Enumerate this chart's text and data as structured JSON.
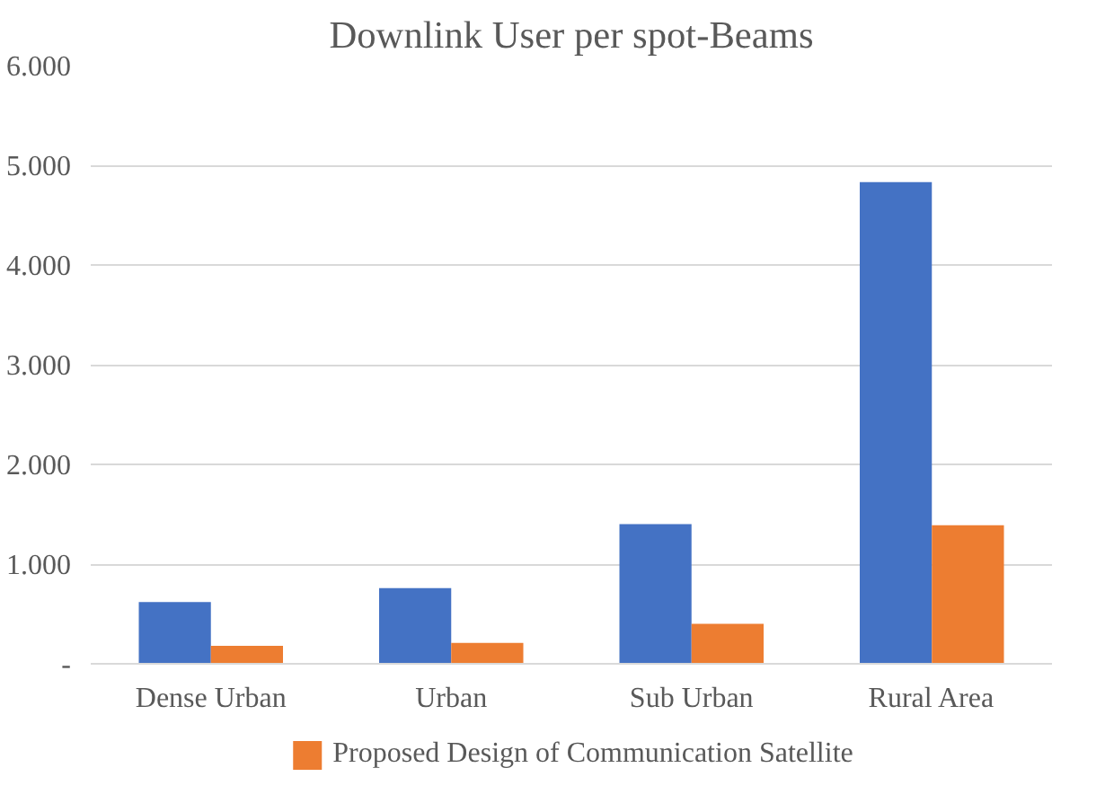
{
  "chart_data": {
    "type": "bar",
    "title": "Downlink User per spot-Beams",
    "categories": [
      "Dense Urban",
      "Urban",
      "Sub Urban",
      "Rural Area"
    ],
    "series": [
      {
        "color": "#4472c4",
        "values": [
          620,
          760,
          1400,
          4830
        ]
      },
      {
        "name": "Proposed Design of Communication Satellite",
        "color": "#ed7d31",
        "values": [
          180,
          210,
          400,
          1390
        ]
      }
    ],
    "ylim": [
      0,
      6000
    ],
    "yticks": [
      {
        "value": 0,
        "label": "-"
      },
      {
        "value": 1000,
        "label": "1.000"
      },
      {
        "value": 2000,
        "label": "2.000"
      },
      {
        "value": 3000,
        "label": "3.000"
      },
      {
        "value": 4000,
        "label": "4.000"
      },
      {
        "value": 5000,
        "label": "5.000"
      },
      {
        "value": 6000,
        "label": "6.000"
      }
    ],
    "grid": "y",
    "legend": "bottom"
  }
}
